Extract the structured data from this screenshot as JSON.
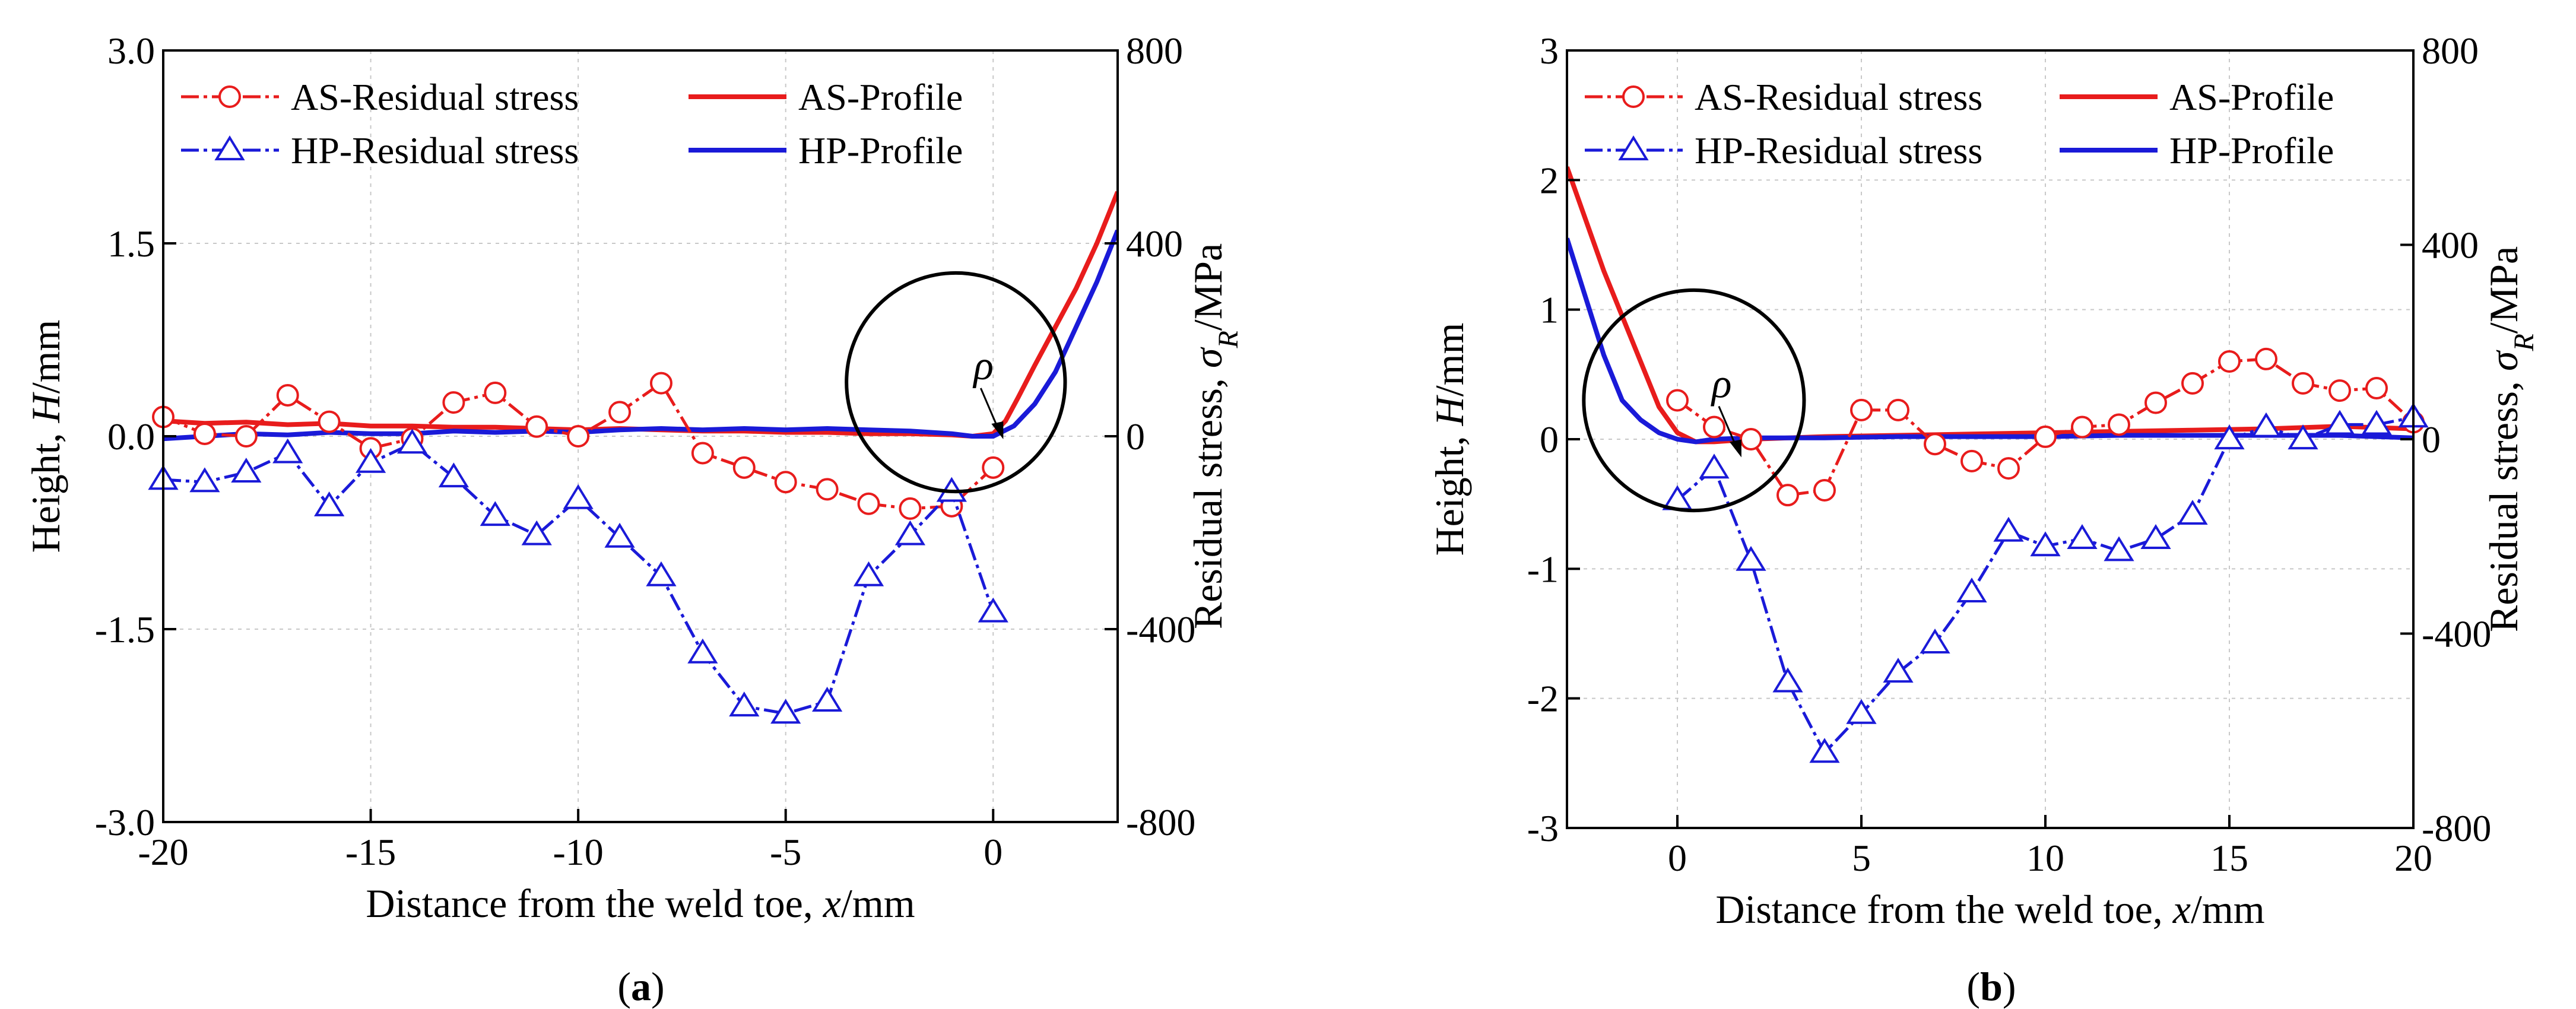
{
  "chart_data": [
    {
      "type": "line",
      "panel_label": "(a)",
      "xlabel": "Distance from the weld toe, x/mm",
      "ylabel": "Height, H/mm",
      "y2label": "Residual stress, σR/MPa",
      "xlim": [
        -20,
        3
      ],
      "ylim": [
        -3,
        3
      ],
      "y2lim": [
        -800,
        800
      ],
      "xticks": [
        -20,
        -15,
        -10,
        -5,
        0
      ],
      "yticks": [
        -3,
        -1.5,
        0,
        1.5,
        3
      ],
      "ytick_labels": [
        "-3.0",
        "-1.5",
        "0.0",
        "1.5",
        "3.0"
      ],
      "y2ticks": [
        -800,
        -400,
        0,
        400,
        800
      ],
      "grid": true,
      "legend": [
        {
          "label": "AS-Residual stress",
          "color": "#e81c1c",
          "marker": "circle",
          "dashed": true
        },
        {
          "label": "AS-Profile",
          "color": "#e81c1c",
          "marker": "none",
          "dashed": false
        },
        {
          "label": "HP-Residual stress",
          "color": "#1a1ad8",
          "marker": "triangle",
          "dashed": true
        },
        {
          "label": "HP-Profile",
          "color": "#1a1ad8",
          "marker": "none",
          "dashed": false
        }
      ],
      "annotation": {
        "text": "ρ",
        "x": -0.9,
        "y": 0.42,
        "r": 0.85
      },
      "series": [
        {
          "name": "AS-Residual stress",
          "axis": "right",
          "color": "#e81c1c",
          "marker": "circle",
          "x": [
            -20,
            -19,
            -18,
            -17,
            -16,
            -15,
            -14,
            -13,
            -12,
            -11,
            -10,
            -9,
            -8,
            -7,
            -6,
            -5,
            -4,
            -3,
            -2,
            -1,
            0
          ],
          "y": [
            40,
            5,
            0,
            85,
            30,
            -25,
            -5,
            70,
            90,
            20,
            0,
            50,
            110,
            -35,
            -65,
            -95,
            -110,
            -140,
            -150,
            -145,
            -65
          ]
        },
        {
          "name": "HP-Residual stress",
          "axis": "right",
          "color": "#1a1ad8",
          "marker": "triangle",
          "x": [
            -20,
            -19,
            -18,
            -17,
            -16,
            -15,
            -14,
            -13,
            -12,
            -11,
            -10,
            -9,
            -8,
            -7,
            -6,
            -5,
            -4,
            -3,
            -2,
            -1,
            0
          ],
          "y": [
            -90,
            -95,
            -75,
            -35,
            -145,
            -55,
            -15,
            -85,
            -165,
            -205,
            -130,
            -210,
            -290,
            -450,
            -560,
            -575,
            -550,
            -290,
            -205,
            -115,
            -365
          ]
        },
        {
          "name": "AS-Profile",
          "axis": "left",
          "color": "#e81c1c",
          "marker": "none",
          "x": [
            -20,
            -19,
            -18,
            -17,
            -16,
            -15,
            -14,
            -13,
            -12,
            -11,
            -10,
            -9,
            -8,
            -7,
            -6,
            -5,
            -4,
            -3,
            -2,
            -1,
            -0.5,
            0,
            0.3,
            0.6,
            1,
            1.5,
            2,
            2.5,
            3
          ],
          "y": [
            0.12,
            0.1,
            0.11,
            0.09,
            0.1,
            0.08,
            0.08,
            0.07,
            0.07,
            0.06,
            0.05,
            0.06,
            0.05,
            0.04,
            0.04,
            0.03,
            0.03,
            0.02,
            0.02,
            0.01,
            0.0,
            0.02,
            0.12,
            0.3,
            0.55,
            0.85,
            1.15,
            1.5,
            1.9
          ]
        },
        {
          "name": "HP-Profile",
          "axis": "left",
          "color": "#1a1ad8",
          "marker": "none",
          "x": [
            -20,
            -19,
            -18,
            -17,
            -16,
            -15,
            -14,
            -13,
            -12,
            -11,
            -10,
            -9,
            -8,
            -7,
            -6,
            -5,
            -4,
            -3,
            -2,
            -1,
            -0.5,
            0,
            0.5,
            1,
            1.5,
            2,
            2.5,
            3
          ],
          "y": [
            -0.02,
            0.0,
            0.02,
            0.01,
            0.03,
            0.02,
            0.02,
            0.04,
            0.03,
            0.04,
            0.03,
            0.05,
            0.06,
            0.05,
            0.06,
            0.05,
            0.06,
            0.05,
            0.04,
            0.02,
            0.0,
            0.0,
            0.08,
            0.25,
            0.5,
            0.85,
            1.2,
            1.6
          ]
        }
      ]
    },
    {
      "type": "line",
      "panel_label": "(b)",
      "xlabel": "Distance from the weld toe, x/mm",
      "ylabel": "Height, H/mm",
      "y2label": "Residual stress, σR/MPa",
      "xlim": [
        -3,
        20
      ],
      "ylim": [
        -3,
        3
      ],
      "y2lim": [
        -800,
        800
      ],
      "xticks": [
        0,
        5,
        10,
        15,
        20
      ],
      "yticks": [
        -3,
        -2,
        -1,
        0,
        1,
        2,
        3
      ],
      "ytick_labels": [
        "-3",
        "-2",
        "-1",
        "0",
        "1",
        "2",
        "3"
      ],
      "y2ticks": [
        -800,
        -400,
        0,
        400,
        800
      ],
      "grid": true,
      "legend": [
        {
          "label": "AS-Residual stress",
          "color": "#e81c1c",
          "marker": "circle",
          "dashed": true
        },
        {
          "label": "AS-Profile",
          "color": "#e81c1c",
          "marker": "none",
          "dashed": false
        },
        {
          "label": "HP-Residual stress",
          "color": "#1a1ad8",
          "marker": "triangle",
          "dashed": true
        },
        {
          "label": "HP-Profile",
          "color": "#1a1ad8",
          "marker": "none",
          "dashed": false
        }
      ],
      "annotation": {
        "text": "ρ",
        "x": 0.45,
        "y": 0.3,
        "r": 0.85
      },
      "series": [
        {
          "name": "AS-Residual stress",
          "axis": "right",
          "color": "#e81c1c",
          "marker": "circle",
          "x": [
            0,
            1,
            2,
            3,
            4,
            5,
            6,
            7,
            8,
            9,
            10,
            11,
            12,
            13,
            14,
            15,
            16,
            17,
            18,
            19,
            20
          ],
          "y": [
            80,
            25,
            0,
            -115,
            -105,
            60,
            60,
            -10,
            -45,
            -60,
            5,
            25,
            30,
            75,
            115,
            160,
            165,
            115,
            100,
            105,
            35
          ]
        },
        {
          "name": "HP-Residual stress",
          "axis": "right",
          "color": "#1a1ad8",
          "marker": "triangle",
          "x": [
            0,
            1,
            2,
            3,
            4,
            5,
            6,
            7,
            8,
            9,
            10,
            11,
            12,
            13,
            14,
            15,
            16,
            17,
            18,
            19,
            20
          ],
          "y": [
            -125,
            -60,
            -250,
            -500,
            -645,
            -565,
            -480,
            -420,
            -315,
            -190,
            -220,
            -205,
            -230,
            -205,
            -155,
            0,
            25,
            0,
            30,
            30,
            45
          ]
        },
        {
          "name": "AS-Profile",
          "axis": "left",
          "color": "#e81c1c",
          "marker": "none",
          "x": [
            -3,
            -2.5,
            -2,
            -1.5,
            -1,
            -0.5,
            0,
            0.5,
            1,
            2,
            4,
            6,
            8,
            10,
            12,
            14,
            16,
            18,
            20
          ],
          "y": [
            2.1,
            1.7,
            1.3,
            0.95,
            0.6,
            0.25,
            0.05,
            -0.02,
            -0.02,
            0.0,
            0.02,
            0.03,
            0.04,
            0.05,
            0.06,
            0.07,
            0.08,
            0.1,
            0.08
          ]
        },
        {
          "name": "HP-Profile",
          "axis": "left",
          "color": "#1a1ad8",
          "marker": "none",
          "x": [
            -3,
            -2.5,
            -2,
            -1.5,
            -1,
            -0.5,
            0,
            0.5,
            1,
            2,
            4,
            6,
            8,
            10,
            12,
            14,
            16,
            18,
            20
          ],
          "y": [
            1.55,
            1.1,
            0.65,
            0.3,
            0.15,
            0.05,
            0.0,
            -0.02,
            0.0,
            0.01,
            0.01,
            0.02,
            0.02,
            0.02,
            0.03,
            0.03,
            0.03,
            0.03,
            0.01
          ]
        }
      ]
    }
  ]
}
